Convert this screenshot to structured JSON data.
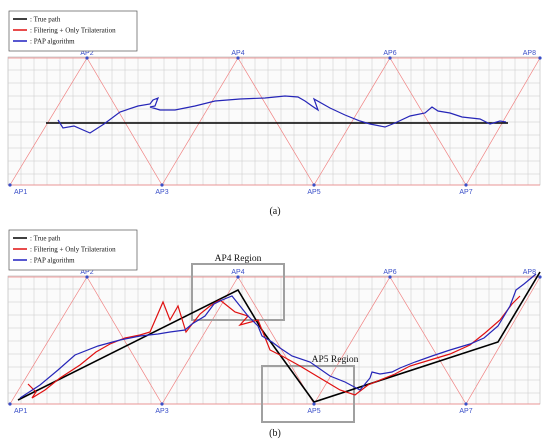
{
  "legend": {
    "items": [
      {
        "label": ": True path",
        "color": "#000000"
      },
      {
        "label": ": Filtering + Only Trilateration",
        "color": "#e01010"
      },
      {
        "label": ": PAP algorithm",
        "color": "#2020c0"
      }
    ]
  },
  "access_points": [
    "AP1",
    "AP2",
    "AP3",
    "AP4",
    "AP5",
    "AP6",
    "AP7",
    "AP8"
  ],
  "panels": [
    {
      "caption": "(a)",
      "regions": []
    },
    {
      "caption": "(b)",
      "regions": [
        {
          "label": "AP4 Region"
        },
        {
          "label": "AP5 Region"
        }
      ]
    }
  ],
  "colors": {
    "grid": "#c8c8c8",
    "triangle": "#f08080",
    "ap_label": "#3a4fc8",
    "true_path": "#000000",
    "filtering": "#e01010",
    "pap": "#2020c0",
    "region_box": "#a0a0a0"
  }
}
